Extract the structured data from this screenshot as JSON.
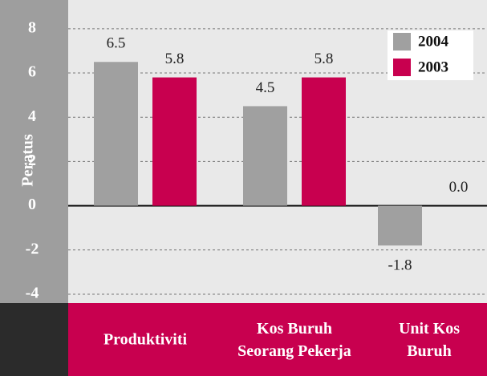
{
  "chart_data": {
    "type": "bar",
    "y_label": "Peratus",
    "categories": [
      "Produktiviti",
      "Kos Buruh\nSeorang Pekerja",
      "Unit Kos\nBuruh"
    ],
    "series": [
      {
        "name": "2004",
        "color": "#a0a0a0",
        "values": [
          6.5,
          4.5,
          -1.8
        ]
      },
      {
        "name": "2003",
        "color": "#c8004f",
        "values": [
          5.8,
          5.8,
          0.0
        ],
        "value_labels": [
          "5.8",
          "5.8",
          "0.0"
        ]
      }
    ],
    "ylim": [
      -4.4,
      9.3
    ],
    "yticks": [
      -4,
      -2,
      0,
      2,
      4,
      6,
      8
    ],
    "grid": true,
    "legend": "top-right"
  }
}
